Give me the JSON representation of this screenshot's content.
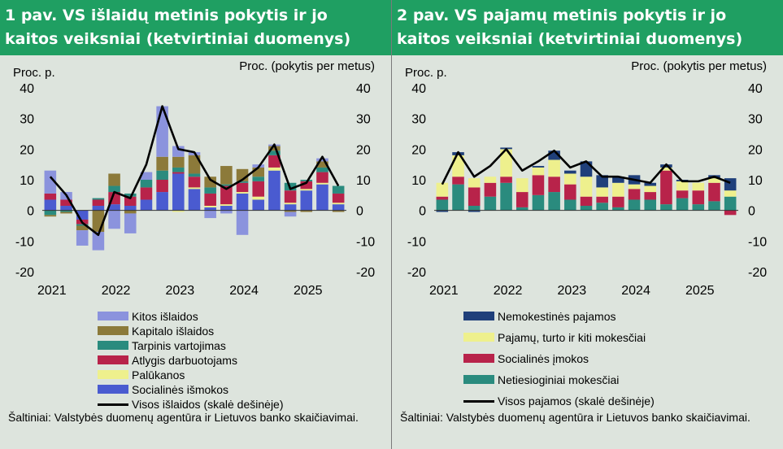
{
  "left": {
    "title": "1 pav. VS išlaidų metinis pokytis ir jo\nkaitos veiksniai (ketvirtiniai duomenys)",
    "source": "Šaltiniai: Valstybės duomenų agentūra ir Lietuvos banko skaičiavimai.",
    "legend": [
      {
        "label": "Kitos išlaidos",
        "color": "#8b93dd"
      },
      {
        "label": "Kapitalo išlaidos",
        "color": "#8c7a3a"
      },
      {
        "label": "Tarpinis vartojimas",
        "color": "#2a8b7e"
      },
      {
        "label": "Atlygis darbuotojams",
        "color": "#b8234a"
      },
      {
        "label": "Palūkanos",
        "color": "#eef08d"
      },
      {
        "label": "Socialinės išmokos",
        "color": "#4a5bd0"
      },
      {
        "label": "Visos išlaidos (skalė dešinėje)",
        "color": "#000000"
      }
    ]
  },
  "right": {
    "title": "2 pav. VS pajamų metinis pokytis ir jo\nkaitos veiksniai (ketvirtiniai duomenys)",
    "source": "Šaltiniai: Valstybės duomenų agentūra ir Lietuvos banko skaičiavimai.",
    "legend": [
      {
        "label": "Nemokestinės pajamos",
        "color": "#1f3f7a"
      },
      {
        "label": "Pajamų, turto ir kiti mokesčiai",
        "color": "#eef08d"
      },
      {
        "label": "Socialinės įmokos",
        "color": "#b8234a"
      },
      {
        "label": "Netiesioginiai mokesčiai",
        "color": "#2a8b7e"
      },
      {
        "label": "Visos pajamos (skalė dešinėje)",
        "color": "#000000"
      }
    ]
  },
  "chart_data": [
    {
      "type": "bar",
      "stacked": true,
      "ylabel_left": "Proc. p.",
      "ylabel_right": "Proc. (pokytis per metus)",
      "ylim": [
        -20,
        40
      ],
      "yticks": [
        -20,
        -10,
        0,
        10,
        20,
        30,
        40
      ],
      "x_tick_labels": [
        "2021",
        "2022",
        "2023",
        "2024",
        "2025"
      ],
      "quarters": [
        "2021 Q1",
        "2021 Q2",
        "2021 Q3",
        "2021 Q4",
        "2022 Q1",
        "2022 Q2",
        "2022 Q3",
        "2022 Q4",
        "2023 Q1",
        "2023 Q2",
        "2023 Q3",
        "2023 Q4",
        "2024 Q1",
        "2024 Q2",
        "2024 Q3",
        "2024 Q4",
        "2025 Q1",
        "2025 Q2",
        "2025 Q3"
      ],
      "series": [
        {
          "name": "Socialinės išmokos",
          "color": "#4a5bd0",
          "values": [
            3.5,
            1.5,
            -3,
            1.5,
            2,
            1.5,
            3.5,
            6,
            12,
            7,
            1,
            1.5,
            5.5,
            3.5,
            13,
            2,
            6.5,
            8.5,
            2
          ]
        },
        {
          "name": "Palūkanos",
          "color": "#eef08d",
          "values": [
            0,
            0,
            0,
            0,
            0,
            0,
            0,
            0,
            -0.5,
            0.5,
            0.5,
            0.5,
            0.5,
            1,
            1,
            0.5,
            0.5,
            0.5,
            0.5
          ]
        },
        {
          "name": "Atlygis darbuotojams",
          "color": "#b8234a",
          "values": [
            2,
            2,
            -1.5,
            2,
            4,
            3,
            4,
            4,
            0.5,
            3.5,
            4,
            6,
            3,
            5,
            4,
            4,
            2.5,
            3.5,
            3
          ]
        },
        {
          "name": "Tarpinis vartojimas",
          "color": "#2a8b7e",
          "values": [
            -1.5,
            -0.5,
            -0.5,
            0.5,
            2,
            1,
            2.5,
            3,
            1.5,
            1,
            2,
            0.5,
            0.5,
            1.5,
            1.5,
            2.5,
            0.5,
            1.5,
            2.5
          ]
        },
        {
          "name": "Kapitalo išlaidos",
          "color": "#8c7a3a",
          "values": [
            -0.5,
            -0.5,
            -1.5,
            -7,
            4,
            -1,
            0,
            4.5,
            3.5,
            6,
            3.5,
            6,
            4,
            3,
            1.5,
            -0.5,
            -0.5,
            2,
            -0.5
          ]
        },
        {
          "name": "Kitos išlaidos",
          "color": "#8b93dd",
          "values": [
            7.5,
            2.5,
            -5,
            -6,
            -6,
            -6.5,
            2.5,
            16.5,
            3.5,
            1,
            -2.5,
            -1,
            -8,
            1,
            0.5,
            -1.5,
            0,
            1,
            0
          ]
        }
      ],
      "line": {
        "name": "Visos išlaidos (skalė dešinėje)",
        "values": [
          11,
          5,
          -4,
          -8,
          6,
          4,
          15,
          34,
          20,
          19,
          10,
          7,
          10,
          14,
          21.5,
          7,
          9,
          17.5,
          8
        ]
      }
    },
    {
      "type": "bar",
      "stacked": true,
      "ylabel_left": "Proc. p.",
      "ylabel_right": "Proc. (pokytis per metus)",
      "ylim": [
        -20,
        40
      ],
      "yticks": [
        -20,
        -10,
        0,
        10,
        20,
        30,
        40
      ],
      "x_tick_labels": [
        "2021",
        "2022",
        "2023",
        "2024",
        "2025"
      ],
      "quarters": [
        "2021 Q1",
        "2021 Q2",
        "2021 Q3",
        "2021 Q4",
        "2022 Q1",
        "2022 Q2",
        "2022 Q3",
        "2022 Q4",
        "2023 Q1",
        "2023 Q2",
        "2023 Q3",
        "2023 Q4",
        "2024 Q1",
        "2024 Q2",
        "2024 Q3",
        "2024 Q4",
        "2025 Q1",
        "2025 Q2",
        "2025 Q3"
      ],
      "series": [
        {
          "name": "Netiesioginiai mokesčiai",
          "color": "#2a8b7e",
          "values": [
            3.5,
            8.5,
            1.5,
            4.5,
            9,
            1,
            5,
            6,
            3.5,
            1.5,
            2.5,
            1,
            3.5,
            3.5,
            2,
            4,
            2,
            3,
            4.5
          ]
        },
        {
          "name": "Socialinės įmokos",
          "color": "#b8234a",
          "values": [
            1,
            2.5,
            6,
            4.5,
            2,
            5,
            6.5,
            5,
            5,
            3,
            2,
            3.5,
            3.5,
            2.5,
            11,
            2.5,
            4.5,
            6,
            -1.5
          ]
        },
        {
          "name": "Pajamų, turto ir kiti mokesčiai",
          "color": "#eef08d",
          "values": [
            4.5,
            7,
            3,
            2,
            9,
            4.5,
            2.5,
            5.5,
            3.5,
            6.5,
            3,
            4.5,
            1.5,
            2,
            1,
            3,
            2.5,
            1.5,
            2
          ]
        },
        {
          "name": "Nemokestinės pajamos",
          "color": "#1f3f7a",
          "values": [
            -0.5,
            1,
            -0.5,
            0,
            0.5,
            0,
            0.5,
            3,
            1,
            5,
            4,
            2,
            3,
            1,
            1,
            0.5,
            0,
            1,
            4
          ]
        }
      ],
      "line": {
        "name": "Visos pajamos (skalė dešinėje)",
        "values": [
          8.5,
          19,
          11,
          14.5,
          20,
          13,
          16,
          19.5,
          14,
          16,
          11,
          11,
          10,
          9,
          15,
          9.5,
          9.5,
          11,
          9
        ]
      }
    }
  ]
}
